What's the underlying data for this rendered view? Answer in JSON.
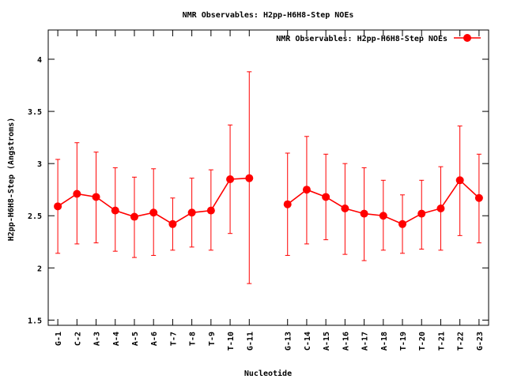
{
  "chart_data": {
    "type": "line",
    "title": "NMR Observables: H2pp-H6H8-Step NOEs",
    "xlabel": "Nucleotide",
    "ylabel": "H2pp-H6H8-Step (Angstroms)",
    "ylim": [
      1.45,
      4.28
    ],
    "yticks": [
      1.5,
      2,
      2.5,
      3,
      3.5,
      4
    ],
    "ytick_labels": [
      "1.5",
      "2",
      "2.5",
      "3",
      "3.5",
      "4"
    ],
    "xlim": [
      0.5,
      23.5
    ],
    "legend_position": "top-right",
    "grid": false,
    "color": "#ff0000",
    "categories": [
      "G-1",
      "C-2",
      "A-3",
      "A-4",
      "A-5",
      "A-6",
      "T-7",
      "T-8",
      "T-9",
      "T-10",
      "G-11",
      "G-13",
      "C-14",
      "A-15",
      "A-16",
      "A-17",
      "A-18",
      "T-19",
      "T-20",
      "T-21",
      "T-22",
      "G-23"
    ],
    "series": [
      {
        "name": "NMR Observables: H2pp-H6H8-Step NOEs",
        "segments": [
          {
            "x": [
              1,
              2,
              3,
              4,
              5,
              6,
              7,
              8,
              9,
              10,
              11
            ],
            "y": [
              2.59,
              2.71,
              2.68,
              2.55,
              2.49,
              2.53,
              2.42,
              2.53,
              2.55,
              2.85,
              2.86
            ],
            "err_low": [
              2.14,
              2.23,
              2.24,
              2.16,
              2.1,
              2.12,
              2.17,
              2.2,
              2.17,
              2.33,
              1.85
            ],
            "err_high": [
              3.04,
              3.2,
              3.11,
              2.96,
              2.87,
              2.95,
              2.67,
              2.86,
              2.94,
              3.37,
              3.88
            ]
          },
          {
            "x": [
              13,
              14,
              15,
              16,
              17,
              18,
              19,
              20,
              21,
              22,
              23
            ],
            "y": [
              2.61,
              2.75,
              2.68,
              2.57,
              2.52,
              2.5,
              2.42,
              2.52,
              2.57,
              2.84,
              2.67
            ],
            "err_low": [
              2.12,
              2.23,
              2.27,
              2.13,
              2.07,
              2.17,
              2.14,
              2.18,
              2.17,
              2.31,
              2.24
            ],
            "err_high": [
              3.1,
              3.26,
              3.09,
              3.0,
              2.96,
              2.84,
              2.7,
              2.84,
              2.97,
              3.36,
              3.09
            ]
          }
        ]
      }
    ]
  }
}
